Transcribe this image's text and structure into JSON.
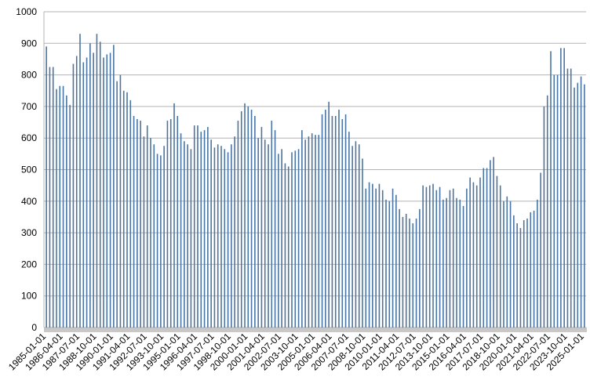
{
  "chart_data": {
    "type": "bar",
    "color": "#4a74a3",
    "grid": true,
    "ylim": [
      0,
      1000
    ],
    "yticks": [
      0,
      100,
      200,
      300,
      400,
      500,
      600,
      700,
      800,
      900,
      1000
    ],
    "categories": [
      "1985-01-01",
      null,
      null,
      null,
      null,
      "1986-04-01",
      null,
      null,
      null,
      null,
      "1987-07-01",
      null,
      null,
      null,
      null,
      "1988-10-01",
      null,
      null,
      null,
      null,
      "1990-01-01",
      null,
      null,
      null,
      null,
      "1991-04-01",
      null,
      null,
      null,
      null,
      "1992-07-01",
      null,
      null,
      null,
      null,
      "1993-10-01",
      null,
      null,
      null,
      null,
      "1995-01-01",
      null,
      null,
      null,
      null,
      "1996-04-01",
      null,
      null,
      null,
      null,
      "1997-07-01",
      null,
      null,
      null,
      null,
      "1998-10-01",
      null,
      null,
      null,
      null,
      "2000-01-01",
      null,
      null,
      null,
      null,
      "2001-04-01",
      null,
      null,
      null,
      null,
      "2002-07-01",
      null,
      null,
      null,
      null,
      "2003-10-01",
      null,
      null,
      null,
      null,
      "2005-01-01",
      null,
      null,
      null,
      null,
      "2006-04-01",
      null,
      null,
      null,
      null,
      "2007-07-01",
      null,
      null,
      null,
      null,
      "2008-10-01",
      null,
      null,
      null,
      null,
      "2010-01-01",
      null,
      null,
      null,
      null,
      "2011-04-01",
      null,
      null,
      null,
      null,
      "2012-07-01",
      null,
      null,
      null,
      null,
      "2013-10-01",
      null,
      null,
      null,
      null,
      "2015-01-01",
      null,
      null,
      null,
      null,
      "2016-04-01",
      null,
      null,
      null,
      null,
      "2017-07-01",
      null,
      null,
      null,
      null,
      "2018-10-01",
      null,
      null,
      null,
      null,
      "2020-01-01",
      null,
      null,
      null,
      null,
      "2021-04-01",
      null,
      null,
      null,
      null,
      "2022-07-01",
      null,
      null,
      null,
      null,
      "2023-10-01",
      null,
      null,
      null,
      null,
      "2025-01-01"
    ],
    "values": [
      890,
      825,
      825,
      755,
      765,
      765,
      735,
      705,
      835,
      860,
      930,
      840,
      855,
      900,
      870,
      930,
      905,
      855,
      865,
      870,
      895,
      780,
      800,
      750,
      745,
      720,
      670,
      660,
      655,
      605,
      640,
      600,
      580,
      550,
      545,
      575,
      655,
      660,
      710,
      670,
      615,
      590,
      580,
      565,
      640,
      640,
      620,
      625,
      635,
      595,
      570,
      580,
      575,
      565,
      555,
      580,
      605,
      655,
      685,
      710,
      700,
      690,
      670,
      600,
      635,
      595,
      580,
      655,
      625,
      550,
      565,
      520,
      510,
      555,
      560,
      565,
      625,
      595,
      605,
      615,
      610,
      610,
      675,
      690,
      715,
      670,
      670,
      690,
      660,
      675,
      620,
      575,
      590,
      580,
      535,
      440,
      460,
      455,
      440,
      455,
      435,
      405,
      400,
      440,
      420,
      375,
      350,
      360,
      345,
      330,
      345,
      375,
      450,
      445,
      450,
      455,
      435,
      445,
      405,
      410,
      435,
      440,
      410,
      405,
      385,
      440,
      475,
      460,
      450,
      475,
      505,
      505,
      530,
      540,
      480,
      450,
      400,
      415,
      400,
      355,
      330,
      315,
      340,
      345,
      365,
      370,
      405,
      490,
      700,
      735,
      875,
      800,
      800,
      885,
      885,
      820,
      820,
      760,
      775,
      795,
      770
    ]
  }
}
